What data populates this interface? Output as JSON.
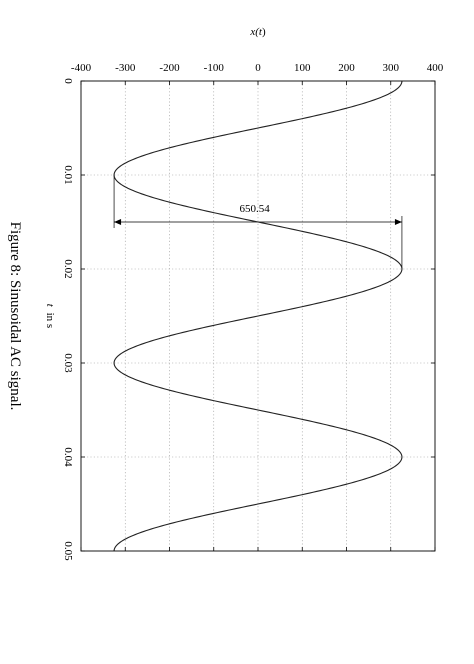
{
  "figure": {
    "caption": "Figure 8: Sinusoidal AC signal."
  },
  "chart_data": {
    "type": "line",
    "title": "",
    "xlabel_var": "t",
    "xlabel_unit": "in s",
    "ylabel_var": "t",
    "ylabel_pre": "x(",
    "ylabel_post": ")",
    "xlim": [
      0,
      0.05
    ],
    "ylim": [
      -400,
      400
    ],
    "x_ticks": [
      0,
      0.01,
      0.02,
      0.03,
      0.04,
      0.05
    ],
    "x_tick_labels": [
      "0",
      "0.01",
      "0.02",
      "0.03",
      "0.04",
      "0.05"
    ],
    "y_ticks": [
      -400,
      -300,
      -200,
      -100,
      0,
      100,
      200,
      300,
      400
    ],
    "y_tick_labels": [
      "-400",
      "-300",
      "-200",
      "-100",
      "0",
      "100",
      "200",
      "300",
      "400"
    ],
    "grid": true,
    "series": [
      {
        "function": "amplitude*cos(2*pi*frequency*t)",
        "amplitude": 325.27,
        "frequency": 50,
        "color": "#222222"
      }
    ],
    "annotation": {
      "label": "650.54",
      "x_start": 0.01,
      "x_end": 0.02,
      "y": -7.5,
      "y_from": -325.27,
      "y_to": 325.27
    }
  }
}
